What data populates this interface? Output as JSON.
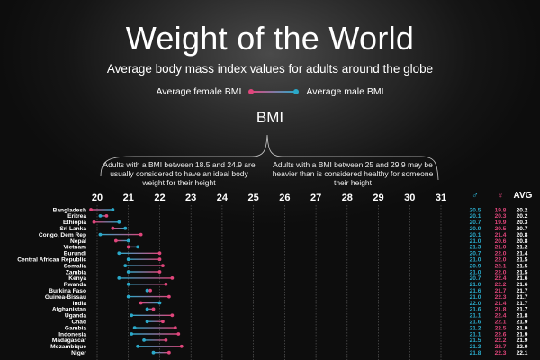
{
  "header": {
    "title": "Weight of the World",
    "subtitle": "Average body mass index values for adults around the globe",
    "legend_female": "Average female BMI",
    "legend_male": "Average male BMI",
    "bmi_label": "BMI",
    "note_left": "Adults with a BMI between 18.5 and 24.9 are usually considered to have an ideal body weight for their height",
    "note_right": "Adults with a BMI between 25 and 29.9 may be heavier than is considered healthy for someone their height"
  },
  "columns": {
    "male_symbol": "♂",
    "female_symbol": "♀",
    "avg_label": "AVG"
  },
  "colors": {
    "female": "#e0457b",
    "male": "#2aa9c9",
    "avg": "#ffffff",
    "text": "#ffffff"
  },
  "chart_data": {
    "type": "dumbbell",
    "title": "Weight of the World",
    "xlim": [
      20,
      31
    ],
    "xticks": [
      "20",
      "21",
      "22",
      "23",
      "24",
      "25",
      "26",
      "27",
      "28",
      "29",
      "30",
      "31"
    ],
    "series": [
      {
        "name": "Average male BMI",
        "key": "male"
      },
      {
        "name": "Average female BMI",
        "key": "female"
      }
    ],
    "rows": [
      {
        "country": "Bangladesh",
        "male": "20.5",
        "female": "19.8",
        "avg": "20.2"
      },
      {
        "country": "Eritrea",
        "male": "20.1",
        "female": "20.3",
        "avg": "20.2"
      },
      {
        "country": "Ethiopia",
        "male": "20.7",
        "female": "19.9",
        "avg": "20.3"
      },
      {
        "country": "Sri Lanka",
        "male": "20.9",
        "female": "20.5",
        "avg": "20.7"
      },
      {
        "country": "Congo, Dem Rep",
        "male": "20.1",
        "female": "21.4",
        "avg": "20.8"
      },
      {
        "country": "Nepal",
        "male": "21.0",
        "female": "20.6",
        "avg": "20.8"
      },
      {
        "country": "Vietnam",
        "male": "21.3",
        "female": "21.0",
        "avg": "21.2"
      },
      {
        "country": "Burundi",
        "male": "20.7",
        "female": "22.0",
        "avg": "21.4"
      },
      {
        "country": "Central African Republic",
        "male": "21.0",
        "female": "22.0",
        "avg": "21.5"
      },
      {
        "country": "Somalia",
        "male": "20.9",
        "female": "22.1",
        "avg": "21.5"
      },
      {
        "country": "Zambia",
        "male": "21.0",
        "female": "22.0",
        "avg": "21.5"
      },
      {
        "country": "Kenya",
        "male": "20.7",
        "female": "22.4",
        "avg": "21.6"
      },
      {
        "country": "Rwanda",
        "male": "21.0",
        "female": "22.2",
        "avg": "21.6"
      },
      {
        "country": "Burkina Faso",
        "male": "21.6",
        "female": "21.7",
        "avg": "21.7"
      },
      {
        "country": "Guinea-Bissau",
        "male": "21.0",
        "female": "22.3",
        "avg": "21.7"
      },
      {
        "country": "India",
        "male": "22.0",
        "female": "21.4",
        "avg": "21.7"
      },
      {
        "country": "Afghanistan",
        "male": "21.6",
        "female": "21.8",
        "avg": "21.7"
      },
      {
        "country": "Uganda",
        "male": "21.1",
        "female": "22.4",
        "avg": "21.8"
      },
      {
        "country": "Chad",
        "male": "21.6",
        "female": "22.1",
        "avg": "21.9"
      },
      {
        "country": "Gambia",
        "male": "21.2",
        "female": "22.5",
        "avg": "21.9"
      },
      {
        "country": "Indonesia",
        "male": "21.1",
        "female": "22.6",
        "avg": "21.9"
      },
      {
        "country": "Madagascar",
        "male": "21.5",
        "female": "22.2",
        "avg": "21.9"
      },
      {
        "country": "Mozambique",
        "male": "21.3",
        "female": "22.7",
        "avg": "22.0"
      },
      {
        "country": "Niger",
        "male": "21.8",
        "female": "22.3",
        "avg": "22.1"
      }
    ]
  }
}
